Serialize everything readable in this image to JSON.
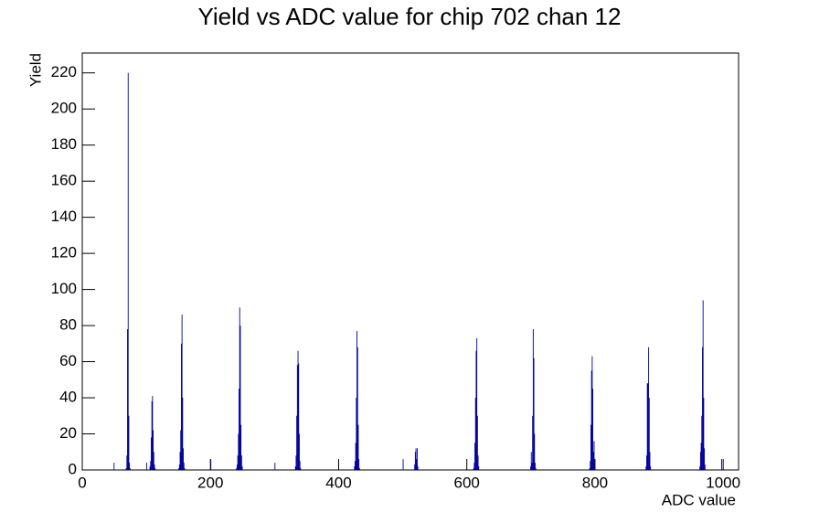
{
  "chart_data": {
    "type": "histogram",
    "title": "Yield vs ADC value for chip 702 chan 12",
    "x_label": "ADC value",
    "y_label": "Yield",
    "color": "#000099",
    "bins": [
      0,
      49,
      50,
      68,
      69,
      70,
      71,
      72,
      73,
      74,
      75,
      100,
      101,
      105,
      106,
      107,
      108,
      109,
      110,
      111,
      112,
      113,
      114,
      150,
      151,
      152,
      153,
      154,
      155,
      156,
      157,
      158,
      159,
      160,
      200,
      201,
      240,
      241,
      242,
      243,
      244,
      245,
      246,
      247,
      248,
      249,
      250,
      300,
      301,
      332,
      333,
      334,
      335,
      336,
      337,
      338,
      339,
      340,
      341,
      424,
      425,
      426,
      427,
      428,
      429,
      430,
      431,
      432,
      433,
      500,
      501,
      518,
      519,
      520,
      521,
      522,
      523,
      524,
      610,
      611,
      612,
      613,
      614,
      615,
      616,
      617,
      618,
      619,
      699,
      700,
      701,
      702,
      703,
      704,
      705,
      706,
      707,
      708,
      791,
      792,
      793,
      794,
      795,
      796,
      797,
      798,
      799,
      800,
      879,
      880,
      881,
      882,
      883,
      884,
      885,
      886,
      887,
      963,
      964,
      965,
      966,
      967,
      968,
      969,
      970,
      971,
      972,
      997,
      998,
      1024
    ],
    "values": [
      0,
      4,
      0,
      1,
      8,
      78,
      220,
      30,
      4,
      1,
      0,
      4,
      0,
      2,
      5,
      18,
      38,
      41,
      22,
      10,
      3,
      1,
      0,
      1,
      3,
      10,
      22,
      70,
      86,
      40,
      12,
      4,
      1,
      0,
      6,
      0,
      1,
      3,
      8,
      20,
      45,
      90,
      80,
      25,
      8,
      2,
      0,
      4,
      0,
      2,
      8,
      30,
      58,
      66,
      59,
      20,
      5,
      1,
      0,
      2,
      5,
      15,
      40,
      77,
      68,
      25,
      6,
      1,
      0,
      6,
      0,
      3,
      10,
      12,
      6,
      12,
      2,
      0,
      1,
      4,
      15,
      40,
      66,
      73,
      30,
      8,
      2,
      0,
      2,
      10,
      4,
      30,
      78,
      62,
      20,
      4,
      1,
      0,
      1,
      5,
      25,
      55,
      63,
      45,
      10,
      16,
      2,
      0,
      2,
      8,
      48,
      48,
      68,
      40,
      10,
      2,
      0,
      2,
      10,
      15,
      30,
      68,
      94,
      40,
      12,
      3,
      0,
      6,
      0
    ],
    "xlim": [
      0,
      1024
    ],
    "ylim": [
      0,
      231
    ],
    "xticks": [
      0,
      200,
      400,
      600,
      800,
      1000
    ],
    "yticks": [
      0,
      20,
      40,
      60,
      80,
      100,
      120,
      140,
      160,
      180,
      200,
      220
    ]
  }
}
